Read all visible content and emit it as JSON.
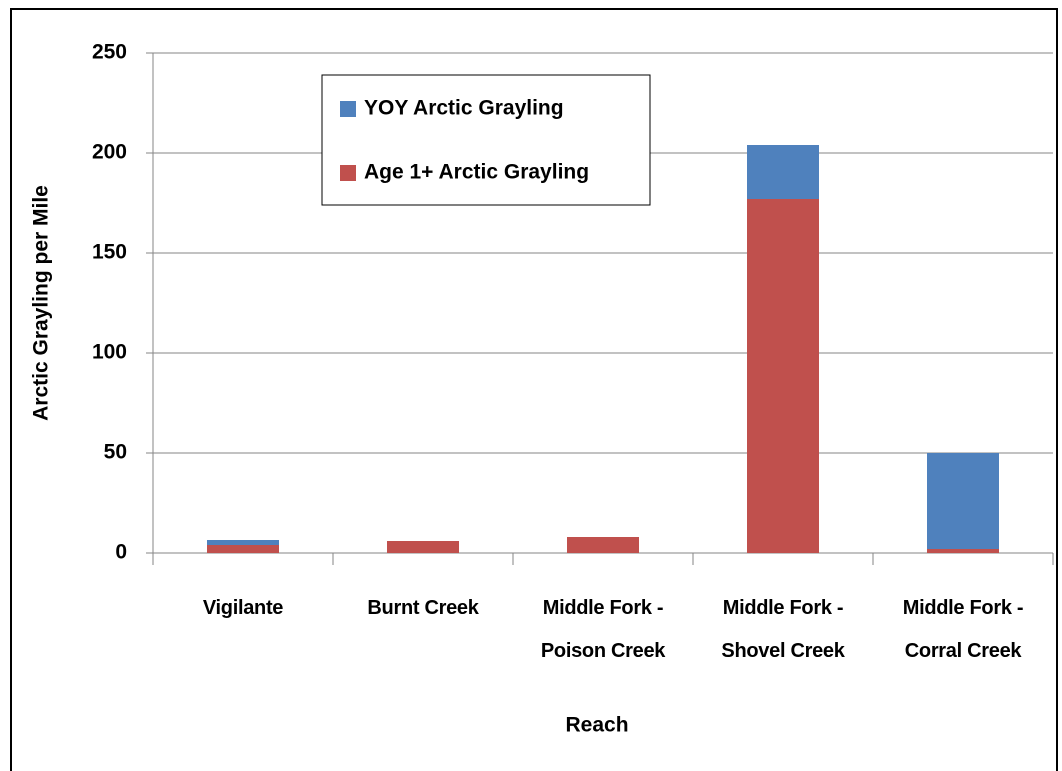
{
  "chart_data": {
    "type": "stacked_bar",
    "x_label": "Reach",
    "y_label": "Arctic Grayling per Mile",
    "categories": [
      "Vigilante",
      "Burnt Creek",
      "Middle Fork - Poison Creek",
      "Middle Fork - Shovel Creek",
      "Middle Fork - Corral Creek"
    ],
    "series": [
      {
        "name": "YOY Arctic Grayling",
        "color": "#4f81bd",
        "values": [
          2.5,
          0,
          0,
          27,
          48
        ]
      },
      {
        "name": "Age 1+ Arctic Grayling",
        "color": "#c0504d",
        "values": [
          4,
          6,
          8,
          177,
          2
        ]
      }
    ],
    "ylim": [
      0,
      250
    ],
    "yticks": [
      0,
      50,
      100,
      150,
      200,
      250
    ],
    "grid": true
  }
}
